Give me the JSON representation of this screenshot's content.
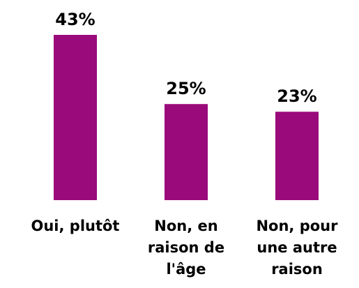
{
  "chart_data": {
    "type": "bar",
    "categories": [
      "Oui, plutôt",
      "Non, en raison de l'âge",
      "Non, pour une autre raison"
    ],
    "values": [
      43,
      25,
      23
    ],
    "value_labels": [
      "43%",
      "25%",
      "23%"
    ],
    "color": "#9b0a7b"
  }
}
